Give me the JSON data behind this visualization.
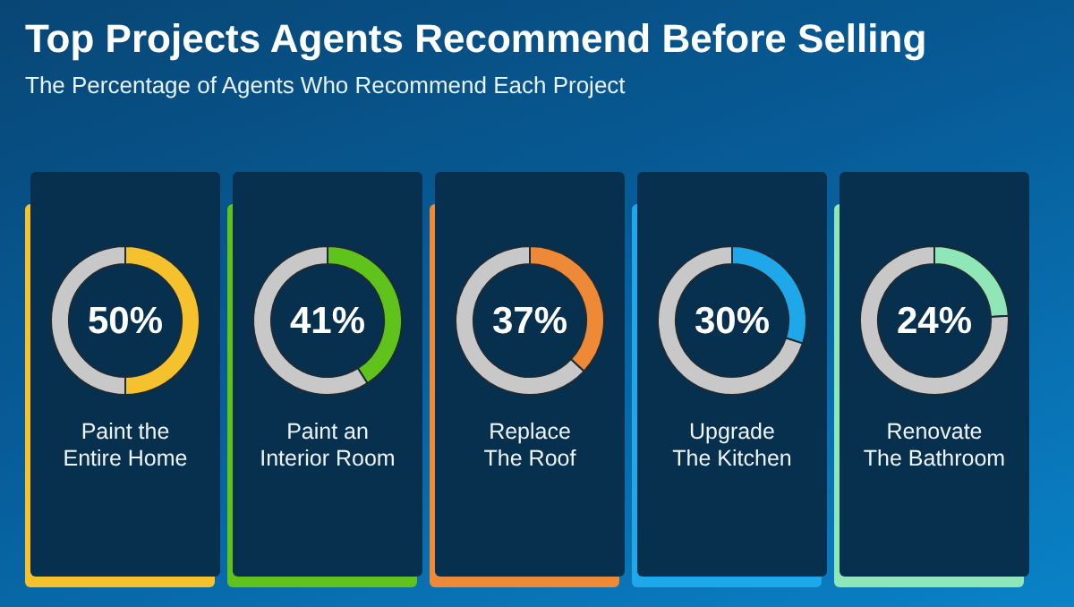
{
  "chart_data": [
    {
      "type": "other",
      "title": "Top Projects Agents Recommend Before Selling",
      "subtitle": "The Percentage of Agents Who Recommend Each Project"
    },
    {
      "type": "donut",
      "title": "Paint the\nEntire Home",
      "categories": [
        null,
        null
      ],
      "values": [
        50,
        50
      ],
      "colors": [
        "#f5c22e",
        "#c8c8c8"
      ],
      "annotations": [
        "50%"
      ]
    },
    {
      "type": "donut",
      "title": "Paint an\nInterior Room",
      "categories": [
        null,
        null
      ],
      "values": [
        41,
        59
      ],
      "colors": [
        "#5fc31c",
        "#c8c8c8"
      ],
      "annotations": [
        "41%"
      ]
    },
    {
      "type": "donut",
      "title": "Replace\nThe Roof",
      "categories": [
        null,
        null
      ],
      "values": [
        37,
        63
      ],
      "colors": [
        "#ee8a37",
        "#c8c8c8"
      ],
      "annotations": [
        "37%"
      ]
    },
    {
      "type": "donut",
      "title": "Upgrade\nThe Kitchen",
      "categories": [
        null,
        null
      ],
      "values": [
        30,
        70
      ],
      "colors": [
        "#1ea8ea",
        "#c8c8c8"
      ],
      "annotations": [
        "30%"
      ]
    },
    {
      "type": "donut",
      "title": "Renovate\nThe Bathroom",
      "categories": [
        null,
        null
      ],
      "values": [
        24,
        76
      ],
      "colors": [
        "#8fe6b6",
        "#c8c8c8"
      ],
      "annotations": [
        "24%"
      ]
    }
  ]
}
